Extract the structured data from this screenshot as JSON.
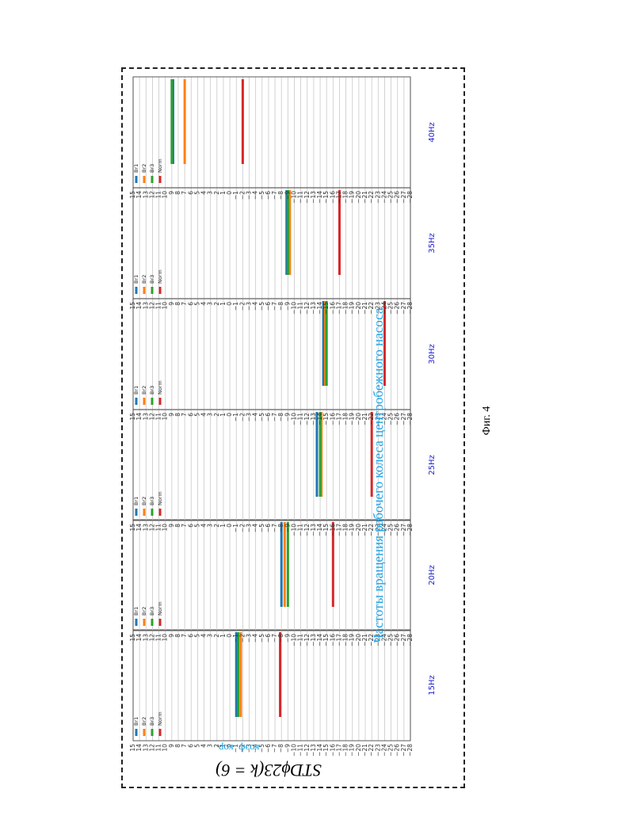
{
  "figure": {
    "formula": "STDϕ23(k = 6)",
    "ylabel": "коэф. кор.",
    "main_title": "Частоты вращения рабочего колеса центробежного насоса",
    "fig_label": "Фиг. 4"
  },
  "colors": {
    "Br1": "#1f77b4",
    "Br2": "#ff7f0e",
    "Br3": "#2ca02c",
    "Norm": "#d62728"
  },
  "chart_data": [
    {
      "type": "bar",
      "title": "15Hz",
      "legend": [
        "Br1",
        "Br2",
        "Br3",
        "Norm"
      ],
      "legend_placement": "top-right",
      "ylim": [
        -28,
        15
      ],
      "grid": true,
      "series": [
        {
          "name": "Br1",
          "value": -1
        },
        {
          "name": "Br2",
          "value": -1.7
        },
        {
          "name": "Br3",
          "value": -1.3
        },
        {
          "name": "Norm",
          "value": -7.8
        }
      ]
    },
    {
      "type": "bar",
      "title": "20Hz",
      "legend": [
        "Br1",
        "Br2",
        "Br3",
        "Norm"
      ],
      "legend_placement": "top-right",
      "ylim": [
        -28,
        15
      ],
      "grid": true,
      "series": [
        {
          "name": "Br1",
          "value": -8
        },
        {
          "name": "Br2",
          "value": -8.5
        },
        {
          "name": "Br3",
          "value": -9
        },
        {
          "name": "Norm",
          "value": -16
        }
      ]
    },
    {
      "type": "bar",
      "title": "25Hz",
      "legend": [
        "Br1",
        "Br2",
        "Br3",
        "Norm"
      ],
      "legend_placement": "top-right",
      "ylim": [
        -28,
        15
      ],
      "grid": true,
      "series": [
        {
          "name": "Br1",
          "value": -13.5
        },
        {
          "name": "Br2",
          "value": -14.2
        },
        {
          "name": "Br3",
          "value": -14
        },
        {
          "name": "Norm",
          "value": -22
        }
      ]
    },
    {
      "type": "bar",
      "title": "30Hz",
      "legend": [
        "Br1",
        "Br2",
        "Br3",
        "Norm"
      ],
      "legend_placement": "top-right",
      "ylim": [
        -28,
        15
      ],
      "grid": true,
      "series": [
        {
          "name": "Br1",
          "value": -14.5
        },
        {
          "name": "Br2",
          "value": -14.8
        },
        {
          "name": "Br3",
          "value": -15
        },
        {
          "name": "Norm",
          "value": -24
        }
      ]
    },
    {
      "type": "bar",
      "title": "35Hz",
      "legend": [
        "Br1",
        "Br2",
        "Br3",
        "Norm"
      ],
      "legend_placement": "top-right",
      "ylim": [
        -28,
        15
      ],
      "grid": true,
      "series": [
        {
          "name": "Br1",
          "value": -8.8
        },
        {
          "name": "Br2",
          "value": -9.3
        },
        {
          "name": "Br3",
          "value": -9
        },
        {
          "name": "Norm",
          "value": -17
        }
      ]
    },
    {
      "type": "bar",
      "title": "40Hz",
      "legend": [
        "Br1",
        "Br2",
        "Br3",
        "Norm"
      ],
      "legend_placement": "top-right",
      "ylim": [
        -28,
        15
      ],
      "grid": true,
      "series": [
        {
          "name": "Br1",
          "value": 8.8
        },
        {
          "name": "Br2",
          "value": 7
        },
        {
          "name": "Br3",
          "value": 9
        },
        {
          "name": "Norm",
          "value": -2
        }
      ]
    }
  ]
}
